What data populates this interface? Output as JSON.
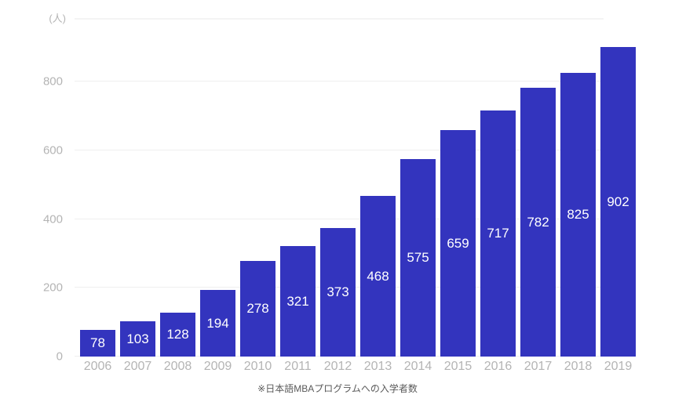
{
  "chart_data": {
    "type": "bar",
    "title": "",
    "unit_label": "(人)",
    "categories": [
      "2006",
      "2007",
      "2008",
      "2009",
      "2010",
      "2011",
      "2012",
      "2013",
      "2014",
      "2015",
      "2016",
      "2017",
      "2018",
      "2019"
    ],
    "values": [
      78,
      103,
      128,
      194,
      278,
      321,
      373,
      468,
      575,
      659,
      717,
      782,
      825,
      902
    ],
    "yticks": [
      0,
      200,
      400,
      600,
      800
    ],
    "ylim": [
      0,
      983
    ],
    "grid": true,
    "legend": "none",
    "caption": "※日本語MBAプログラムへの入学者数"
  },
  "colors": {
    "bar": "#3334be",
    "grid": "#efefef",
    "axis_text": "#b4b4b4",
    "value_text": "#ffffff",
    "caption_text": "#595959",
    "background": "#ffffff"
  }
}
